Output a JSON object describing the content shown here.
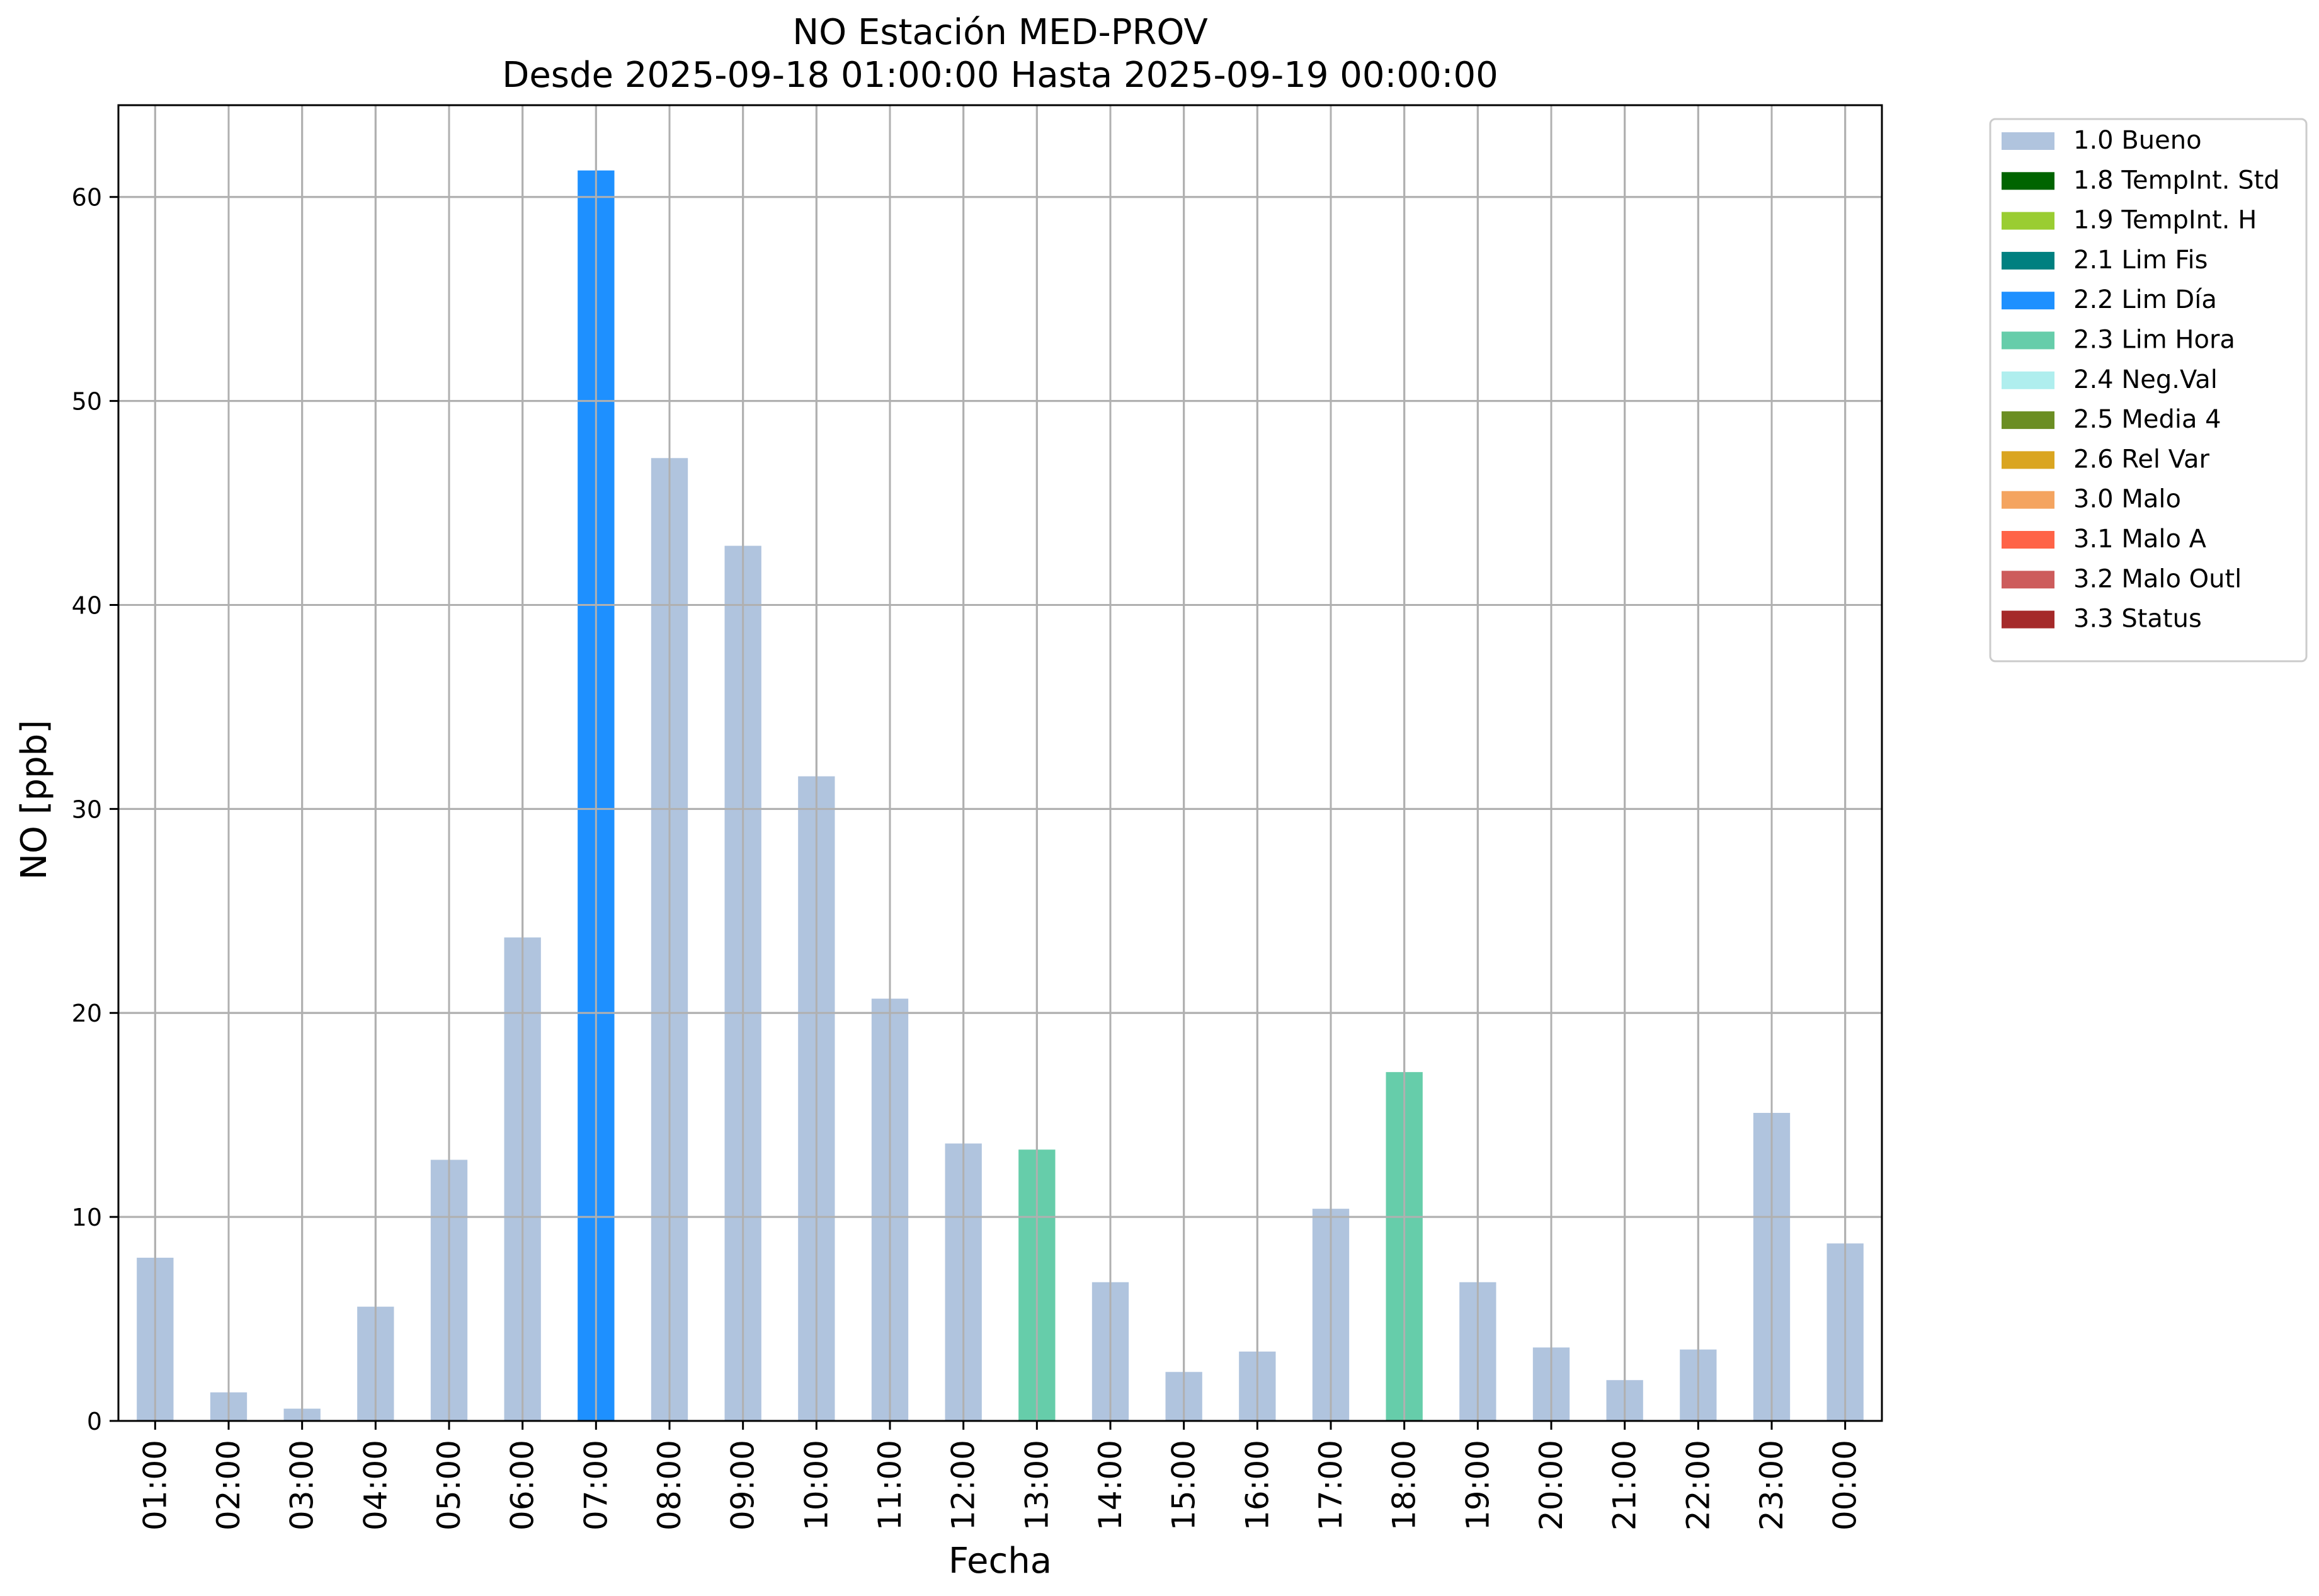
{
  "chart_data": {
    "type": "bar",
    "title": "NO Estación MED-PROV",
    "subtitle": "Desde 2025-09-18 01:00:00 Hasta 2025-09-19 00:00:00",
    "xlabel": "Fecha",
    "ylabel": "NO [ppb]",
    "ylim": [
      0,
      64.5
    ],
    "yticks": [
      "0",
      "10",
      "20",
      "30",
      "40",
      "50",
      "60"
    ],
    "grid": true,
    "legend_position": "outside-top-right",
    "categories": [
      "01:00",
      "02:00",
      "03:00",
      "04:00",
      "05:00",
      "06:00",
      "07:00",
      "08:00",
      "09:00",
      "10:00",
      "11:00",
      "12:00",
      "13:00",
      "14:00",
      "15:00",
      "16:00",
      "17:00",
      "18:00",
      "19:00",
      "20:00",
      "21:00",
      "22:00",
      "23:00",
      "00:00"
    ],
    "values": [
      8.0,
      1.4,
      0.6,
      5.6,
      12.8,
      23.7,
      61.3,
      47.2,
      42.9,
      31.6,
      20.7,
      13.6,
      13.3,
      6.8,
      2.4,
      3.4,
      10.4,
      17.1,
      6.8,
      3.6,
      2.0,
      3.5,
      15.1,
      8.7
    ],
    "flags": [
      "1.0 Bueno",
      "1.0 Bueno",
      "1.0 Bueno",
      "1.0 Bueno",
      "1.0 Bueno",
      "1.0 Bueno",
      "2.2 Lim Día",
      "1.0 Bueno",
      "1.0 Bueno",
      "1.0 Bueno",
      "1.0 Bueno",
      "1.0 Bueno",
      "2.3 Lim Hora",
      "1.0 Bueno",
      "1.0 Bueno",
      "1.0 Bueno",
      "1.0 Bueno",
      "2.3 Lim Hora",
      "1.0 Bueno",
      "1.0 Bueno",
      "1.0 Bueno",
      "1.0 Bueno",
      "1.0 Bueno",
      "1.0 Bueno"
    ],
    "legend": [
      {
        "label": "1.0 Bueno",
        "color": "#b0c4de"
      },
      {
        "label": "1.8 TempInt. Std",
        "color": "#006400"
      },
      {
        "label": "1.9 TempInt. H",
        "color": "#9acd32"
      },
      {
        "label": "2.1 Lim Fis",
        "color": "#008080"
      },
      {
        "label": "2.2 Lim Día",
        "color": "#1e90ff"
      },
      {
        "label": "2.3 Lim Hora",
        "color": "#66cdaa"
      },
      {
        "label": "2.4 Neg.Val",
        "color": "#afeeee"
      },
      {
        "label": "2.5 Media 4",
        "color": "#6b8e23"
      },
      {
        "label": "2.6 Rel Var",
        "color": "#daa520"
      },
      {
        "label": "3.0 Malo",
        "color": "#f4a460"
      },
      {
        "label": "3.1 Malo A",
        "color": "#ff6347"
      },
      {
        "label": "3.2 Malo Outl",
        "color": "#cd5c5c"
      },
      {
        "label": "3.3 Status",
        "color": "#a52a2a"
      }
    ]
  }
}
